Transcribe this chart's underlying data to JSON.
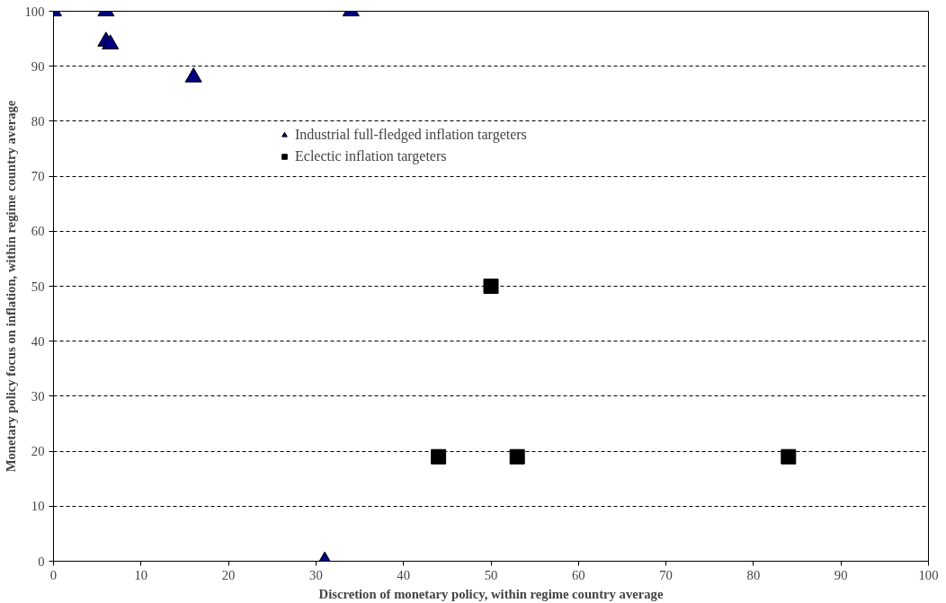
{
  "chart_data": {
    "type": "scatter",
    "xlabel": "Discretion of monetary policy, within regime country average",
    "ylabel": "Monetary policy focus on inflation, within regime country average",
    "xlim": [
      0,
      100
    ],
    "ylim": [
      0,
      100
    ],
    "xticks": [
      0,
      10,
      20,
      30,
      40,
      50,
      60,
      70,
      80,
      90,
      100
    ],
    "yticks": [
      0,
      10,
      20,
      30,
      40,
      50,
      60,
      70,
      80,
      90,
      100
    ],
    "grid": "y",
    "legend": "top",
    "series": [
      {
        "name": "Industrial full-fledged inflation targeters",
        "color": "#000080",
        "marker": "triangle",
        "x": [
          0,
          6,
          6,
          6.5,
          16,
          34,
          31
        ],
        "values": [
          100,
          100,
          94.5,
          94,
          88,
          100,
          0
        ]
      },
      {
        "name": "Eclectic inflation targeters",
        "color": "#000000",
        "marker": "square",
        "x": [
          50,
          44,
          53,
          84
        ],
        "values": [
          50,
          19,
          19,
          19
        ]
      }
    ]
  }
}
